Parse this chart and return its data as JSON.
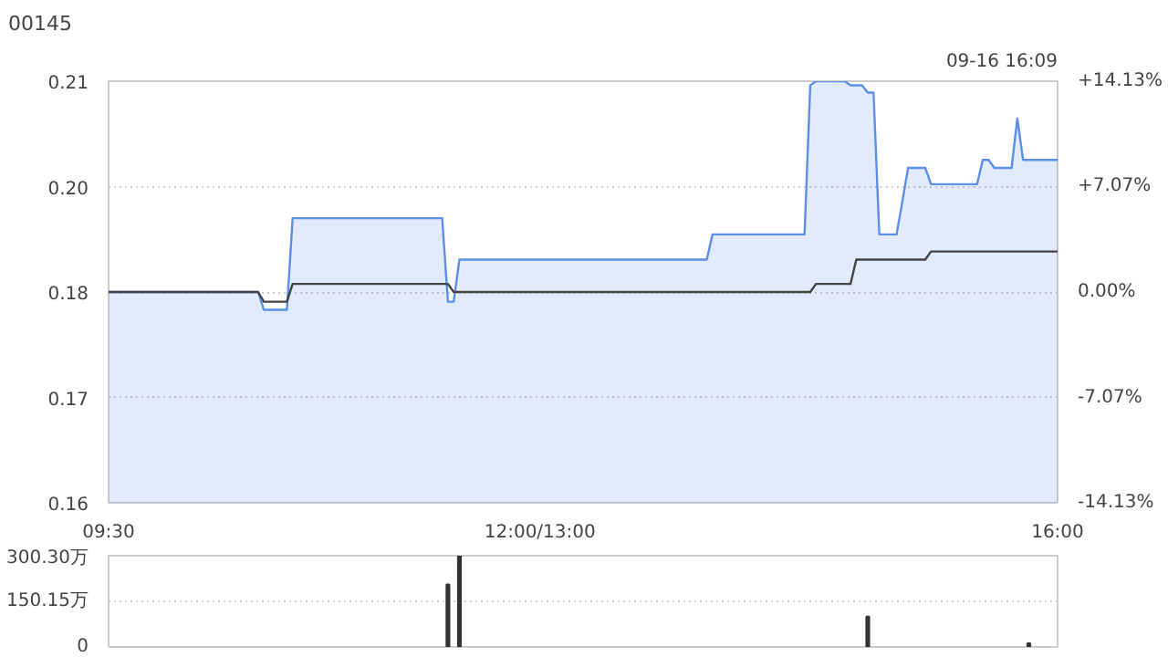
{
  "chart_data": [
    {
      "type": "line",
      "title": "00145",
      "annotations": [
        "09-16 16:09"
      ],
      "categories": [
        "09:30",
        null,
        null,
        null,
        null,
        null,
        null,
        null,
        null,
        null,
        null,
        null,
        null,
        null,
        null,
        null,
        null,
        null,
        null,
        null,
        null,
        null,
        null,
        null,
        null,
        null,
        null,
        null,
        null,
        null,
        null,
        null,
        null,
        null,
        null,
        null,
        null,
        null,
        null,
        null,
        null,
        null,
        null,
        null,
        null,
        null,
        null,
        null,
        null,
        null,
        null,
        null,
        null,
        null,
        null,
        null,
        null,
        null,
        null,
        null,
        null,
        null,
        null,
        null,
        null,
        null,
        null,
        null,
        null,
        null,
        null,
        null,
        null,
        null,
        null,
        "12:00/13:00",
        null,
        null,
        null,
        null,
        null,
        null,
        null,
        null,
        null,
        null,
        null,
        null,
        null,
        null,
        null,
        null,
        null,
        null,
        null,
        null,
        null,
        null,
        null,
        null,
        null,
        null,
        null,
        null,
        null,
        null,
        null,
        null,
        null,
        null,
        null,
        null,
        null,
        null,
        null,
        null,
        null,
        null,
        null,
        null,
        null,
        null,
        null,
        null,
        null,
        null,
        null,
        null,
        null,
        null,
        null,
        null,
        null,
        null,
        null,
        null,
        null,
        null,
        null,
        null,
        null,
        null,
        null,
        null,
        null,
        null,
        null,
        null,
        null,
        null,
        null,
        null,
        null,
        null,
        null,
        null,
        null,
        null,
        null,
        null,
        null,
        null,
        null,
        null,
        null,
        "16:00"
      ],
      "ylim": [
        0.158,
        0.21
      ],
      "yticks": [
        {
          "value": 0.158,
          "label": "0.16"
        },
        {
          "value": 0.171,
          "label": "0.17"
        },
        {
          "value": 0.184,
          "label": "0.18"
        },
        {
          "value": 0.197,
          "label": "0.20"
        },
        {
          "value": 0.21,
          "label": "0.21"
        }
      ],
      "y2lim": [
        -14.13,
        14.13
      ],
      "y2ticks": [
        {
          "value": -14.13,
          "label": "-14.13%"
        },
        {
          "value": -7.07,
          "label": "-7.07%"
        },
        {
          "value": 0,
          "label": "0.00%"
        },
        {
          "value": 7.07,
          "label": "+7.07%"
        },
        {
          "value": 14.13,
          "label": "+14.13%"
        }
      ],
      "grid": "y",
      "series": [
        {
          "type": "area",
          "color": "#5b8fe8",
          "values": [
            0.184,
            0.184,
            0.184,
            0.184,
            0.184,
            0.184,
            0.184,
            0.184,
            0.184,
            0.184,
            0.184,
            0.184,
            0.184,
            0.184,
            0.184,
            0.184,
            0.184,
            0.184,
            0.184,
            0.184,
            0.184,
            0.184,
            0.184,
            0.184,
            0.184,
            0.184,
            0.184,
            0.1818,
            0.1818,
            0.1818,
            0.1818,
            0.1818,
            0.1931,
            0.1931,
            0.1931,
            0.1931,
            0.1931,
            0.1931,
            0.1931,
            0.1931,
            0.1931,
            0.1931,
            0.1931,
            0.1931,
            0.1931,
            0.1931,
            0.1931,
            0.1931,
            0.1931,
            0.1931,
            0.1931,
            0.1931,
            0.1931,
            0.1931,
            0.1931,
            0.1931,
            0.1931,
            0.1931,
            0.1931,
            0.1828,
            0.1828,
            0.188,
            0.188,
            0.188,
            0.188,
            0.188,
            0.188,
            0.188,
            0.188,
            0.188,
            0.188,
            0.188,
            0.188,
            0.188,
            0.188,
            0.188,
            0.188,
            0.188,
            0.188,
            0.188,
            0.188,
            0.188,
            0.188,
            0.188,
            0.188,
            0.188,
            0.188,
            0.188,
            0.188,
            0.188,
            0.188,
            0.188,
            0.188,
            0.188,
            0.188,
            0.188,
            0.188,
            0.188,
            0.188,
            0.188,
            0.188,
            0.188,
            0.188,
            0.188,
            0.188,
            0.1911,
            0.1911,
            0.1911,
            0.1911,
            0.1911,
            0.1911,
            0.1911,
            0.1911,
            0.1911,
            0.1911,
            0.1911,
            0.1911,
            0.1911,
            0.1911,
            0.1911,
            0.1911,
            0.1911,
            0.2095,
            0.21,
            0.21,
            0.21,
            0.21,
            0.21,
            0.21,
            0.2095,
            0.2095,
            0.2095,
            0.2086,
            0.2086,
            0.1911,
            0.1911,
            0.1911,
            0.1911,
            0.1951,
            0.1993,
            0.1993,
            0.1993,
            0.1993,
            0.1973,
            0.1973,
            0.1973,
            0.1973,
            0.1973,
            0.1973,
            0.1973,
            0.1973,
            0.1973,
            0.2003,
            0.2003,
            0.1993,
            0.1993,
            0.1993,
            0.1993,
            0.2054,
            0.2003,
            0.2003,
            0.2003,
            0.2003,
            0.2003,
            0.2003,
            0.2003
          ]
        },
        {
          "type": "line",
          "color": "#444444",
          "values": [
            0.184,
            0.184,
            0.184,
            0.184,
            0.184,
            0.184,
            0.184,
            0.184,
            0.184,
            0.184,
            0.184,
            0.184,
            0.184,
            0.184,
            0.184,
            0.184,
            0.184,
            0.184,
            0.184,
            0.184,
            0.184,
            0.184,
            0.184,
            0.184,
            0.184,
            0.184,
            0.184,
            0.1828,
            0.1828,
            0.1828,
            0.1828,
            0.1828,
            0.185,
            0.185,
            0.185,
            0.185,
            0.185,
            0.185,
            0.185,
            0.185,
            0.185,
            0.185,
            0.185,
            0.185,
            0.185,
            0.185,
            0.185,
            0.185,
            0.185,
            0.185,
            0.185,
            0.185,
            0.185,
            0.185,
            0.185,
            0.185,
            0.185,
            0.185,
            0.185,
            0.185,
            0.184,
            0.184,
            0.184,
            0.184,
            0.184,
            0.184,
            0.184,
            0.184,
            0.184,
            0.184,
            0.184,
            0.184,
            0.184,
            0.184,
            0.184,
            0.184,
            0.184,
            0.184,
            0.184,
            0.184,
            0.184,
            0.184,
            0.184,
            0.184,
            0.184,
            0.184,
            0.184,
            0.184,
            0.184,
            0.184,
            0.184,
            0.184,
            0.184,
            0.184,
            0.184,
            0.184,
            0.184,
            0.184,
            0.184,
            0.184,
            0.184,
            0.184,
            0.184,
            0.184,
            0.184,
            0.184,
            0.184,
            0.184,
            0.184,
            0.184,
            0.184,
            0.184,
            0.184,
            0.184,
            0.184,
            0.184,
            0.184,
            0.184,
            0.184,
            0.184,
            0.184,
            0.184,
            0.184,
            0.185,
            0.185,
            0.185,
            0.185,
            0.185,
            0.185,
            0.185,
            0.188,
            0.188,
            0.188,
            0.188,
            0.188,
            0.188,
            0.188,
            0.188,
            0.188,
            0.188,
            0.188,
            0.188,
            0.188,
            0.189,
            0.189,
            0.189,
            0.189,
            0.189,
            0.189,
            0.189,
            0.189,
            0.189,
            0.189,
            0.189,
            0.189,
            0.189,
            0.189,
            0.189,
            0.189,
            0.189,
            0.189,
            0.189,
            0.189,
            0.189,
            0.189,
            0.189
          ]
        }
      ]
    },
    {
      "type": "bar",
      "color": "#333333",
      "categories": [
        null,
        null,
        null,
        null,
        null,
        null,
        null,
        null,
        null,
        null,
        null,
        null,
        null,
        null,
        null,
        null,
        null,
        null,
        null,
        null,
        null,
        null,
        null,
        null,
        null,
        null,
        null,
        null,
        null,
        null,
        null,
        null,
        null,
        null,
        null,
        null,
        null,
        null,
        null,
        null,
        null,
        null,
        null,
        null,
        null,
        null,
        null,
        null,
        null,
        null,
        null,
        null,
        null,
        null,
        null,
        null,
        null,
        null,
        null,
        null,
        null,
        null,
        null,
        null,
        null,
        null,
        null,
        null,
        null,
        null,
        null,
        null,
        null,
        null,
        null,
        null,
        null,
        null,
        null,
        null,
        null,
        null,
        null,
        null,
        null,
        null,
        null,
        null,
        null,
        null,
        null,
        null,
        null,
        null,
        null,
        null,
        null,
        null,
        null,
        null,
        null,
        null,
        null,
        null,
        null,
        null,
        null,
        null,
        null,
        null,
        null,
        null,
        null,
        null,
        null,
        null,
        null,
        null,
        null,
        null,
        null,
        null,
        null,
        null,
        null,
        null,
        null,
        null,
        null,
        null,
        null,
        null,
        null,
        null,
        null,
        null,
        null,
        null,
        null,
        null,
        null,
        null,
        null,
        null,
        null,
        null,
        null,
        null,
        null,
        null,
        null,
        null,
        null,
        null,
        null,
        null,
        null,
        null,
        null,
        null,
        null,
        null,
        null,
        null,
        null,
        null
      ],
      "values": [
        null,
        null,
        null,
        null,
        null,
        null,
        null,
        null,
        null,
        null,
        null,
        null,
        null,
        null,
        null,
        null,
        null,
        null,
        null,
        null,
        null,
        null,
        null,
        null,
        null,
        null,
        null,
        null,
        null,
        null,
        null,
        null,
        null,
        null,
        null,
        null,
        null,
        null,
        null,
        null,
        null,
        null,
        null,
        null,
        null,
        null,
        null,
        null,
        null,
        null,
        null,
        null,
        null,
        null,
        null,
        null,
        null,
        null,
        null,
        206,
        null,
        300,
        null,
        null,
        null,
        null,
        null,
        null,
        null,
        null,
        null,
        null,
        null,
        null,
        null,
        null,
        null,
        null,
        null,
        null,
        null,
        null,
        null,
        null,
        null,
        null,
        null,
        null,
        null,
        null,
        null,
        null,
        null,
        null,
        null,
        null,
        null,
        null,
        null,
        null,
        null,
        null,
        null,
        null,
        null,
        null,
        null,
        null,
        null,
        null,
        null,
        null,
        null,
        null,
        null,
        null,
        null,
        null,
        null,
        null,
        null,
        null,
        null,
        null,
        null,
        null,
        null,
        null,
        null,
        null,
        null,
        null,
        100,
        null,
        null,
        null,
        null,
        null,
        null,
        null,
        null,
        null,
        null,
        null,
        null,
        null,
        null,
        null,
        null,
        null,
        null,
        null,
        null,
        null,
        null,
        null,
        null,
        null,
        null,
        null,
        12,
        null,
        null,
        null,
        null,
        null
      ],
      "ylim": [
        0,
        300.3
      ],
      "yticks": [
        {
          "value": 0,
          "label": "0"
        },
        {
          "value": 150.15,
          "label": "150.15万"
        },
        {
          "value": 300.3,
          "label": "300.30万"
        }
      ],
      "tick_labels": "y",
      "grid": "y"
    }
  ]
}
